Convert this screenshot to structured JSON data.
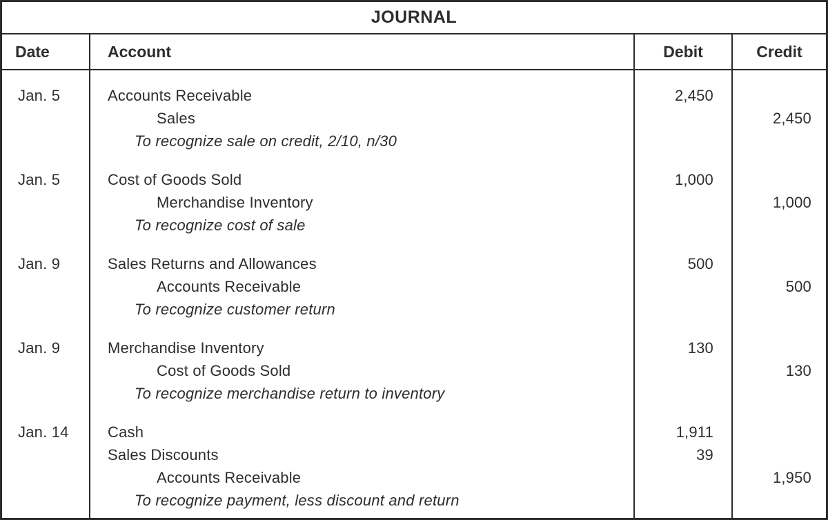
{
  "title": "JOURNAL",
  "columns": {
    "date": "Date",
    "account": "Account",
    "debit": "Debit",
    "credit": "Credit"
  },
  "colors": {
    "text": "#2d2d2d",
    "border": "#2b2b2b",
    "background": "#ffffff"
  },
  "entries": [
    {
      "date": "Jan. 5",
      "lines": [
        {
          "text": "Accounts Receivable",
          "debit": "2,450"
        },
        {
          "text": "Sales",
          "credit": "2,450"
        },
        {
          "text": "To recognize sale on credit, 2/10, n/30"
        }
      ]
    },
    {
      "date": "Jan. 5",
      "lines": [
        {
          "text": "Cost of Goods Sold",
          "debit": "1,000"
        },
        {
          "text": "Merchandise Inventory",
          "credit": "1,000"
        },
        {
          "text": "To recognize cost of sale"
        }
      ]
    },
    {
      "date": "Jan. 9",
      "lines": [
        {
          "text": "Sales Returns and Allowances",
          "debit": "500"
        },
        {
          "text": "Accounts Receivable",
          "credit": "500"
        },
        {
          "text": "To recognize customer return"
        }
      ]
    },
    {
      "date": "Jan. 9",
      "lines": [
        {
          "text": "Merchandise Inventory",
          "debit": "130"
        },
        {
          "text": "Cost of Goods Sold",
          "credit": "130"
        },
        {
          "text": "To recognize merchandise return to inventory"
        }
      ]
    },
    {
      "date": "Jan. 14",
      "lines": [
        {
          "text": "Cash",
          "debit": "1,911"
        },
        {
          "text": "Sales Discounts",
          "debit": "39"
        },
        {
          "text": "Accounts Receivable",
          "credit": "1,950"
        },
        {
          "text": "To recognize payment, less discount and return"
        }
      ]
    }
  ]
}
